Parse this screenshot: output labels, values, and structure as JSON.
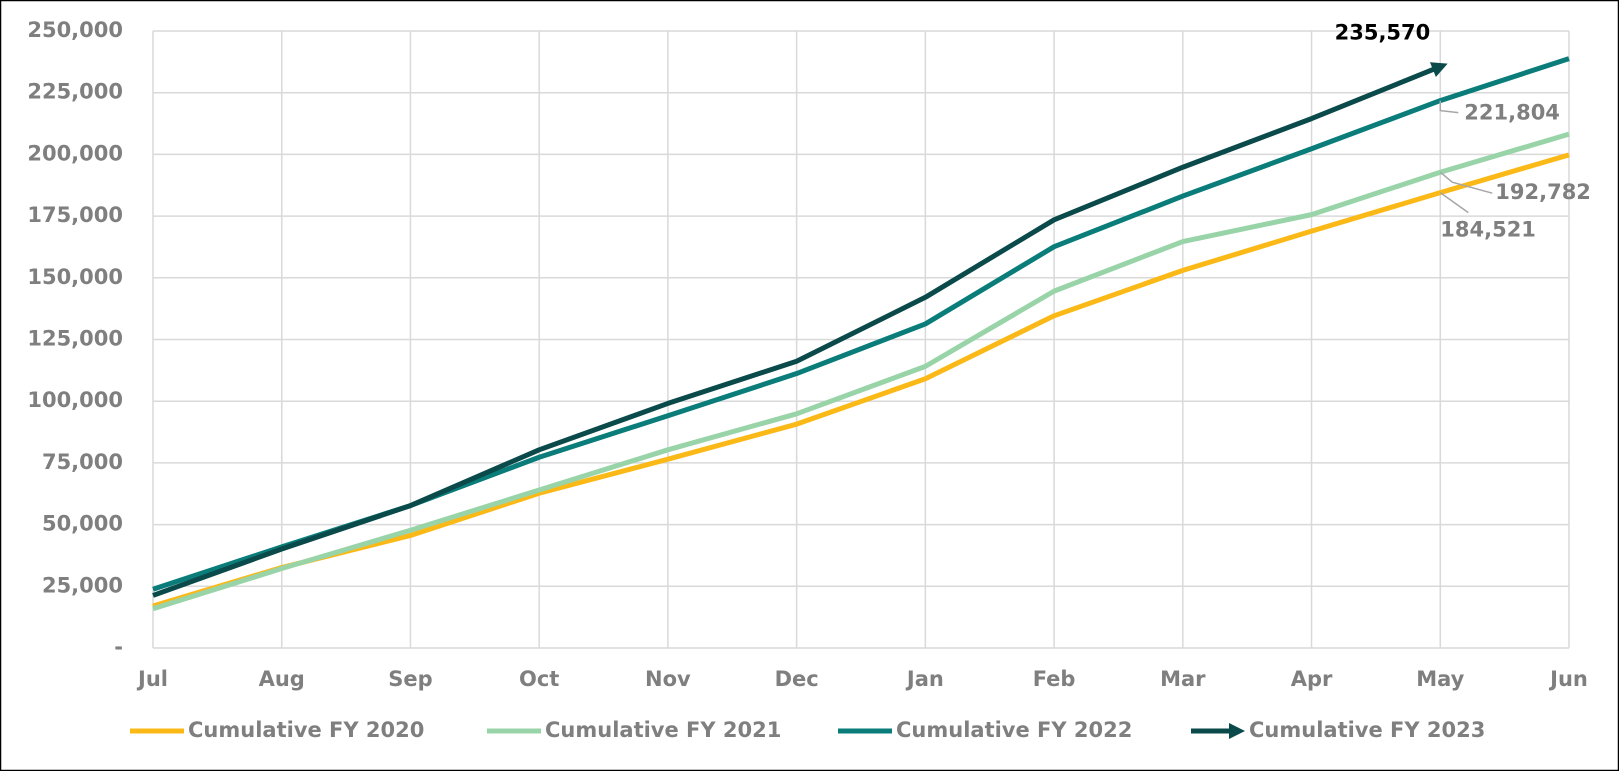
{
  "chart_data": {
    "type": "line",
    "categories": [
      "Jul",
      "Aug",
      "Sep",
      "Oct",
      "Nov",
      "Dec",
      "Jan",
      "Feb",
      "Mar",
      "Apr",
      "May",
      "Jun"
    ],
    "series": [
      {
        "name": "Cumulative FY 2020",
        "color": "#fbb917",
        "values": [
          17000,
          32600,
          45600,
          62700,
          76500,
          90700,
          109100,
          134600,
          153000,
          168900,
          184521,
          199800
        ],
        "value_labels": [
          null,
          null,
          null,
          null,
          null,
          null,
          null,
          null,
          null,
          null,
          "184,521",
          null
        ]
      },
      {
        "name": "Cumulative FY 2021",
        "color": "#98d4a8",
        "values": [
          15900,
          32200,
          47700,
          64000,
          80300,
          94900,
          114100,
          144600,
          164700,
          175600,
          192782,
          208200
        ],
        "value_labels": [
          null,
          null,
          null,
          null,
          null,
          null,
          null,
          null,
          null,
          null,
          "192,782",
          null
        ]
      },
      {
        "name": "Cumulative FY 2022",
        "color": "#0a7d7a",
        "values": [
          23800,
          41000,
          57700,
          77300,
          94100,
          111200,
          131300,
          162600,
          183100,
          202300,
          221804,
          238800
        ],
        "value_labels": [
          null,
          null,
          null,
          null,
          null,
          null,
          null,
          null,
          null,
          null,
          "221,804",
          null
        ]
      },
      {
        "name": "Cumulative FY 2023",
        "color": "#0b4a4a",
        "values": [
          21300,
          40100,
          57700,
          80300,
          99100,
          116200,
          142100,
          173500,
          194800,
          214500,
          235570,
          null
        ],
        "value_labels": [
          null,
          null,
          null,
          null,
          null,
          null,
          null,
          null,
          null,
          null,
          "235,570",
          null
        ]
      }
    ],
    "ylim": [
      0,
      250000
    ],
    "yticks": [
      {
        "value": 0,
        "label": "-"
      },
      {
        "value": 25000,
        "label": "25,000"
      },
      {
        "value": 50000,
        "label": "50,000"
      },
      {
        "value": 75000,
        "label": "75,000"
      },
      {
        "value": 100000,
        "label": "100,000"
      },
      {
        "value": 125000,
        "label": "125,000"
      },
      {
        "value": 150000,
        "label": "150,000"
      },
      {
        "value": 175000,
        "label": "175,000"
      },
      {
        "value": 200000,
        "label": "200,000"
      },
      {
        "value": 225000,
        "label": "225,000"
      },
      {
        "value": 250000,
        "label": "250,000"
      }
    ],
    "grid": true,
    "legend": "bottom"
  }
}
